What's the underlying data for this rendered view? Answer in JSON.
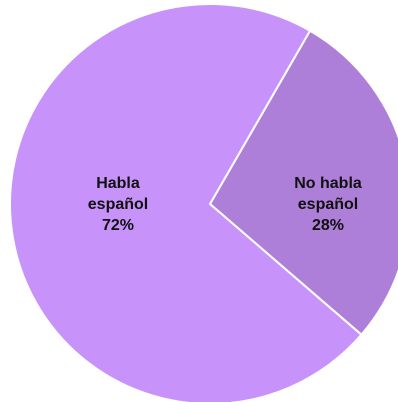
{
  "chart_data": {
    "type": "pie",
    "slices": [
      {
        "label_lines": [
          "Habla",
          "español"
        ],
        "value_label": "72%",
        "value": 72,
        "color": "#c793fb"
      },
      {
        "label_lines": [
          "No habla",
          "español"
        ],
        "value_label": "28%",
        "value": 28,
        "color": "#ad7fd9"
      }
    ],
    "border_color": "#ffffff",
    "legend": "none"
  }
}
